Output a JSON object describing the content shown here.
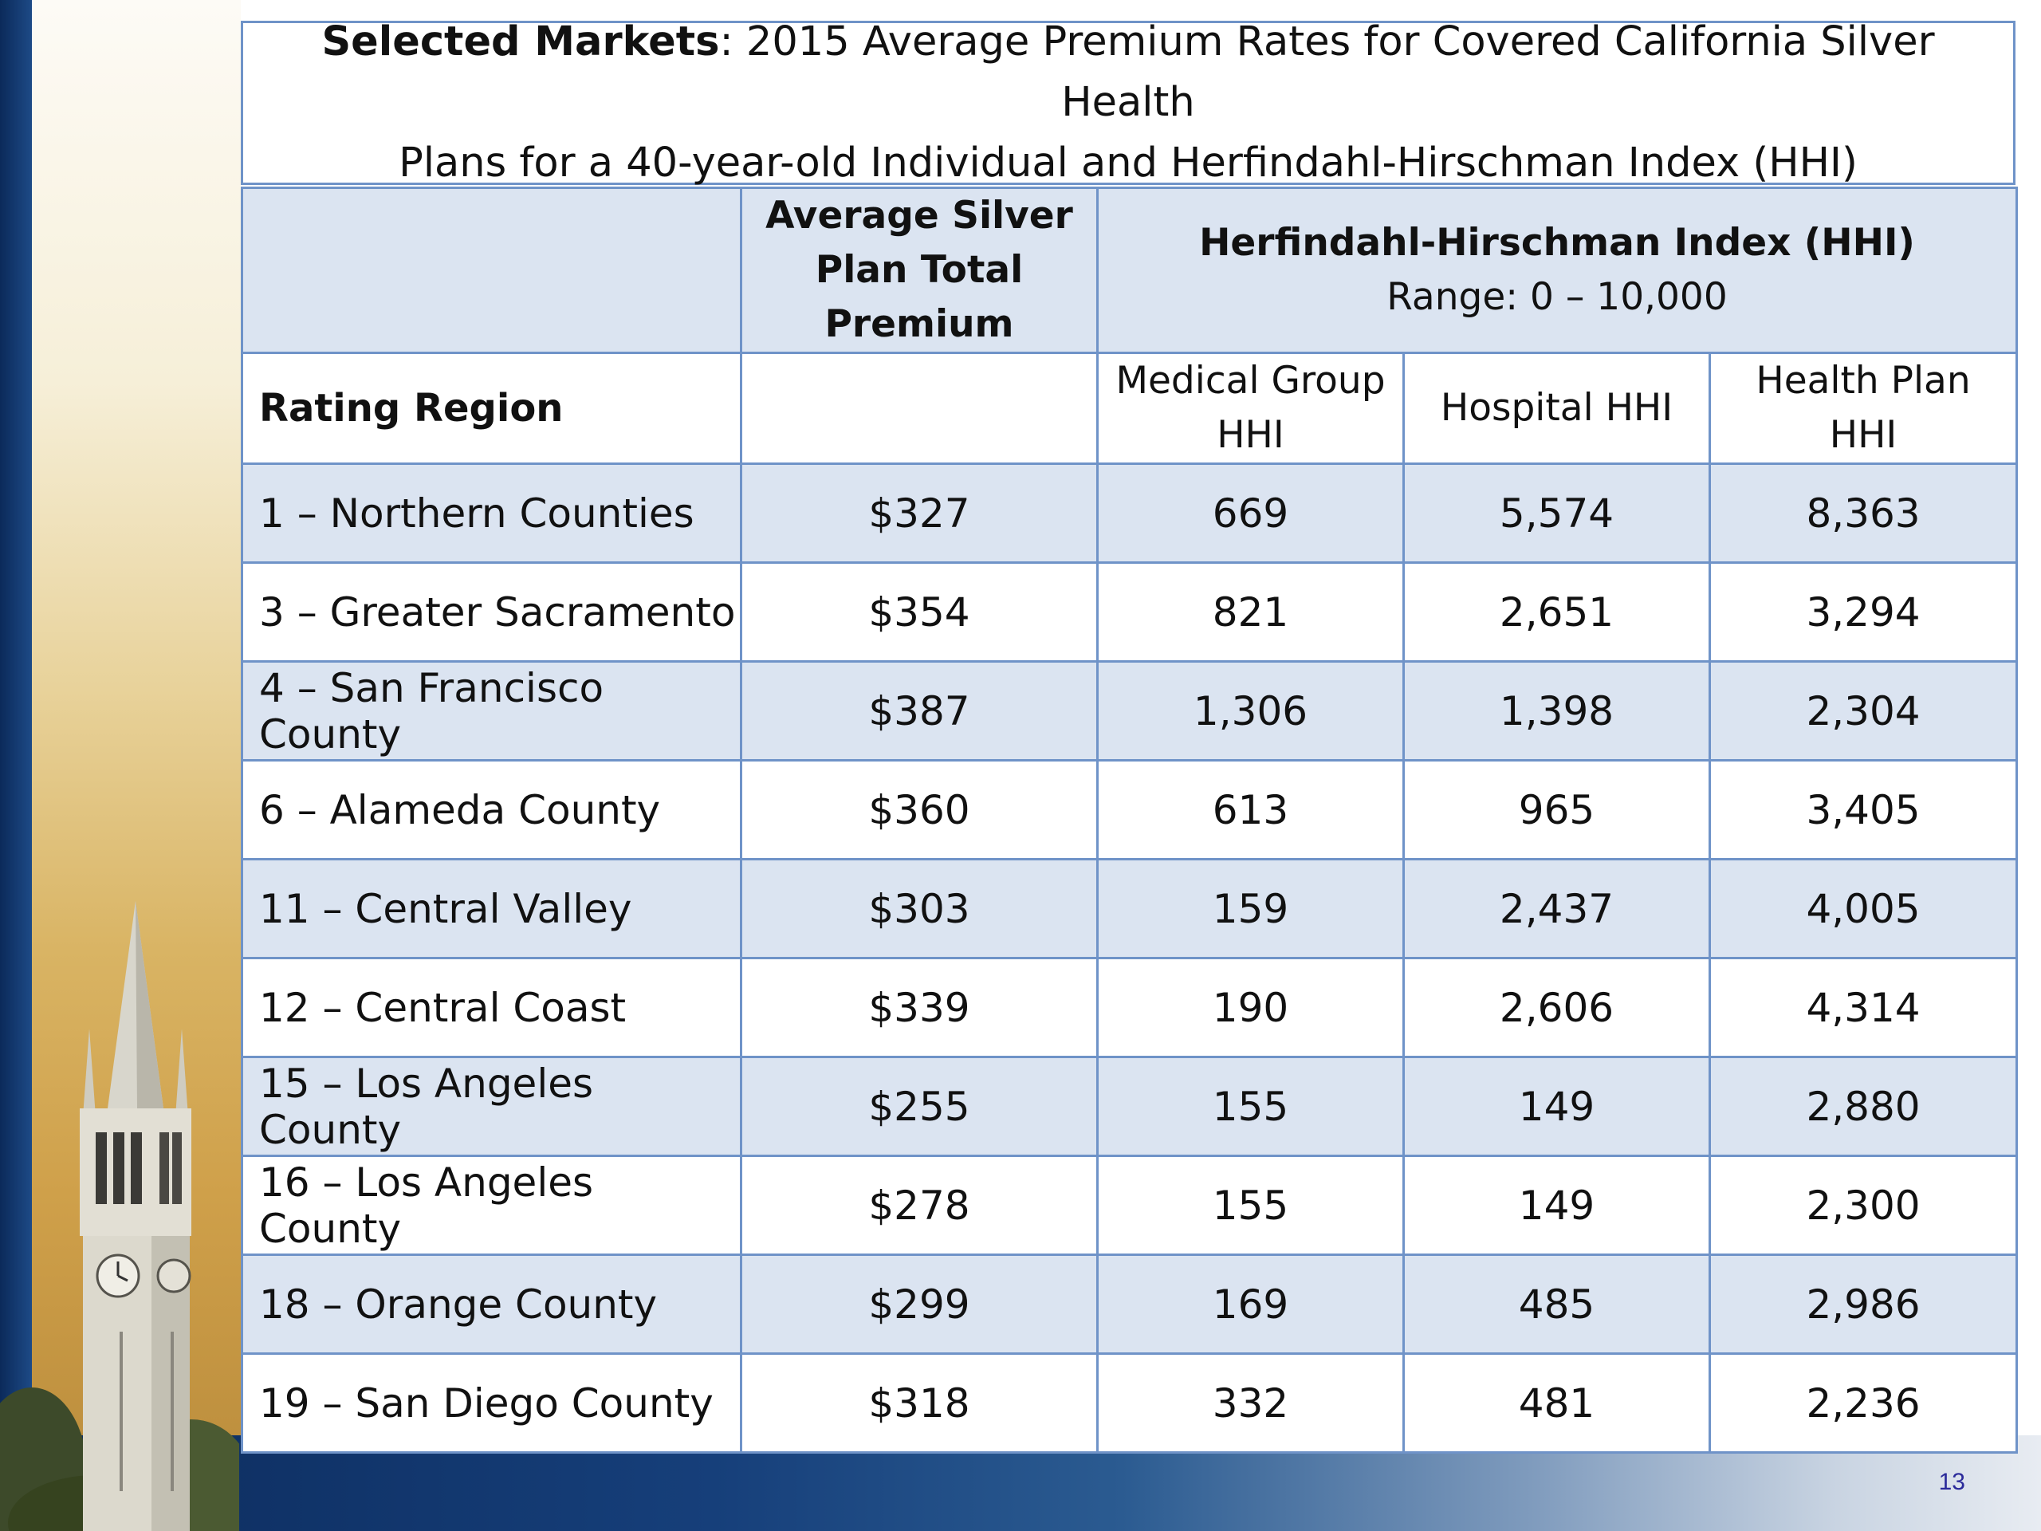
{
  "slide": {
    "number": "13",
    "title_bold": "Selected Markets",
    "title_rest_line1": ": 2015 Average Premium Rates for Covered California Silver Health",
    "title_rest_line2": "Plans for a 40-year-old Individual and Herfindahl-Hirschman Index (HHI)"
  },
  "table": {
    "header": {
      "premium_line1": "Average Silver",
      "premium_line2": "Plan Total",
      "premium_line3": "Premium",
      "hhi_title": "Herfindahl-Hirschman Index (HHI)",
      "hhi_range": "Range: 0 – 10,000",
      "rating_region": "Rating Region",
      "medical_group_line1": "Medical Group",
      "medical_group_line2": "HHI",
      "hospital": "Hospital HHI",
      "health_plan_line1": "Health Plan",
      "health_plan_line2": "HHI"
    },
    "rows": [
      {
        "region": "1 – Northern Counties",
        "premium": "$327",
        "medical_group": "669",
        "hospital": "5,574",
        "health_plan": "8,363"
      },
      {
        "region": "3 – Greater Sacramento",
        "premium": "$354",
        "medical_group": "821",
        "hospital": "2,651",
        "health_plan": "3,294"
      },
      {
        "region": "4 – San Francisco County",
        "premium": "$387",
        "medical_group": "1,306",
        "hospital": "1,398",
        "health_plan": "2,304"
      },
      {
        "region": "6 – Alameda County",
        "premium": "$360",
        "medical_group": "613",
        "hospital": "965",
        "health_plan": "3,405"
      },
      {
        "region": "11 – Central Valley",
        "premium": "$303",
        "medical_group": "159",
        "hospital": "2,437",
        "health_plan": "4,005"
      },
      {
        "region": "12 – Central Coast",
        "premium": "$339",
        "medical_group": "190",
        "hospital": "2,606",
        "health_plan": "4,314"
      },
      {
        "region": "15 – Los Angeles County",
        "premium": "$255",
        "medical_group": "155",
        "hospital": "149",
        "health_plan": "2,880"
      },
      {
        "region": "16 – Los Angeles County",
        "premium": "$278",
        "medical_group": "155",
        "hospital": "149",
        "health_plan": "2,300"
      },
      {
        "region": "18 – Orange County",
        "premium": "$299",
        "medical_group": "169",
        "hospital": "485",
        "health_plan": "2,986"
      },
      {
        "region": "19 – San Diego County",
        "premium": "$318",
        "medical_group": "332",
        "hospital": "481",
        "health_plan": "2,236"
      }
    ]
  },
  "colors": {
    "border": "#6f93c8",
    "band": "#dbe4f1",
    "navy": "#0c2b5c",
    "gold": "#cfa04a",
    "slide_number": "#2a2a9a"
  }
}
